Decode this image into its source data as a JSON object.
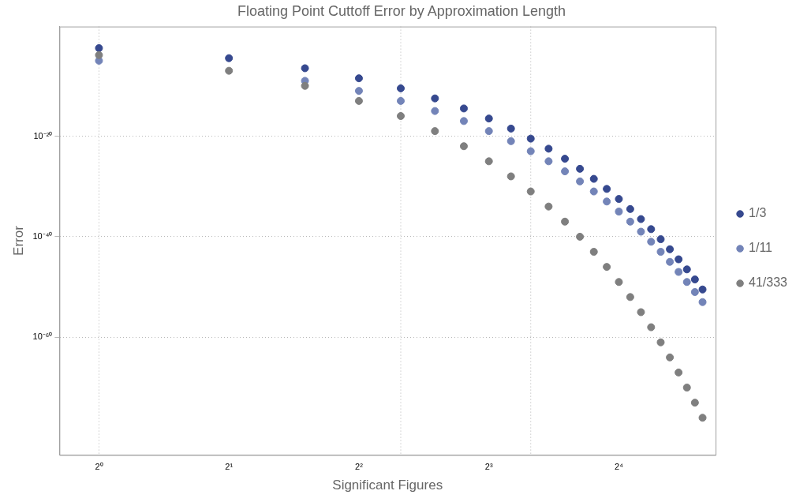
{
  "chart_data": {
    "type": "scatter",
    "title": "Floating Point Cuttoff Error by Approximation Length",
    "xlabel": "Significant Figures",
    "ylabel": "Error",
    "x": [
      1,
      2,
      3,
      4,
      5,
      6,
      7,
      8,
      9,
      10,
      11,
      12,
      13,
      14,
      15,
      16,
      17,
      18,
      19,
      20,
      21,
      22,
      23,
      24,
      25
    ],
    "log": "xy",
    "grid": "y",
    "legend": "right",
    "marker": "circle",
    "xlim": [
      0.81,
      26.8
    ],
    "ylim": [
      4e-84,
      63
    ],
    "xticks": [
      {
        "value": 1,
        "label": "2⁰"
      },
      {
        "value": 2,
        "label": "2¹"
      },
      {
        "value": 4,
        "label": "2²"
      },
      {
        "value": 8,
        "label": "2³"
      },
      {
        "value": 16,
        "label": "2⁴"
      }
    ],
    "yticks": [
      {
        "value": 1e-20,
        "label": "10⁻²⁰"
      },
      {
        "value": 1e-40,
        "label": "10⁻⁴⁰"
      },
      {
        "value": 1e-60,
        "label": "10⁻⁶⁰"
      }
    ],
    "ref_lines": [
      {
        "axis": "x",
        "value": 1,
        "label": null,
        "color": "#b0b0b0",
        "line_style": "dotted"
      },
      {
        "axis": "x",
        "value": 5,
        "label": null,
        "color": "#b0b0b0",
        "line_style": "dotted"
      },
      {
        "axis": "x",
        "value": 10,
        "label": null,
        "color": "#b0b0b0",
        "line_style": "dotted"
      }
    ],
    "series": [
      {
        "name": "1/3",
        "color": "#36498f",
        "values": [
          0.0032,
          3.2e-05,
          3.2e-07,
          3.2e-09,
          3.2e-11,
          3.2e-13,
          3.2e-15,
          3.2e-17,
          3.2e-19,
          3.2e-21,
          3.2e-23,
          3.2e-25,
          3.2e-27,
          3.2e-29,
          3.2e-31,
          3.2e-33,
          3.2e-35,
          3.2e-37,
          3.2e-39,
          3.2e-41,
          3.2e-43,
          3.2e-45,
          3.2e-47,
          3.2e-49,
          3.2e-51
        ]
      },
      {
        "name": "1/11",
        "color": "#7384b8",
        "values": [
          1e-05,
          null,
          1e-09,
          1e-11,
          1e-13,
          1e-15,
          1e-17,
          1e-19,
          1e-21,
          1e-23,
          1e-25,
          1e-27,
          1e-29,
          1e-31,
          1e-33,
          1e-35,
          1e-37,
          1e-39,
          1e-41,
          1e-43,
          1e-45,
          1e-47,
          1e-49,
          1e-51,
          1e-53
        ]
      },
      {
        "name": "41/333",
        "color": "#7f7f7f",
        "values": [
          0.00013,
          1e-07,
          1e-10,
          1e-13,
          1e-16,
          1e-19,
          1e-22,
          1e-25,
          1e-28,
          1e-31,
          1e-34,
          1e-37,
          1e-40,
          1e-43,
          1e-46,
          1e-49,
          1e-52,
          1e-55,
          1e-58,
          1e-61,
          1e-64,
          1e-67,
          1e-70,
          1e-73,
          1e-76
        ]
      }
    ]
  }
}
